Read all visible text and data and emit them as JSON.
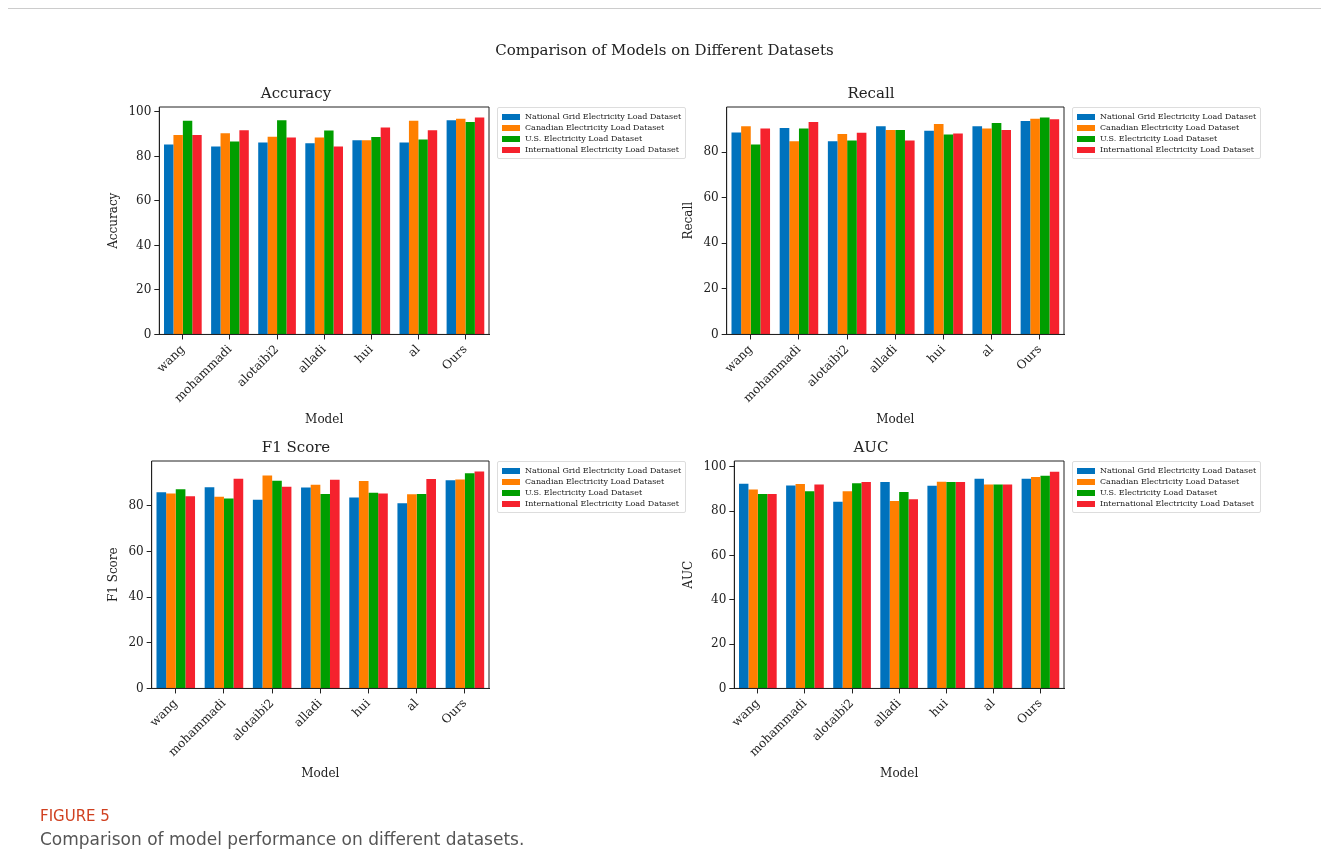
{
  "chart_data": [
    {
      "type": "bar",
      "title": "Accuracy",
      "xlabel": "Model",
      "ylabel": "Accuracy",
      "annotations": [
        "Comparison of Models on Different Datasets"
      ],
      "legend": "right",
      "ylim": [
        0,
        102.2
      ],
      "yticks": [
        0,
        20,
        40,
        60,
        80,
        100
      ],
      "categories": [
        "wang",
        "mohammadi",
        "alotaibi2",
        "alladi",
        "hui",
        "al",
        "Ours"
      ],
      "series": [
        {
          "name": "National Grid Electricity Load Dataset",
          "color": "#0072bd",
          "values": [
            85.4,
            84.4,
            86.3,
            85.9,
            87.3,
            86.3,
            96.2
          ]
        },
        {
          "name": "Canadian Electricity Load Dataset",
          "color": "#ff7f00",
          "values": [
            89.6,
            90.4,
            88.8,
            88.5,
            87.3,
            96.0,
            96.9
          ]
        },
        {
          "name": "U.S. Electricity Load Dataset",
          "color": "#009e00",
          "values": [
            96.0,
            86.7,
            96.3,
            91.6,
            88.7,
            87.6,
            95.5
          ]
        },
        {
          "name": "International Electricity Load Dataset",
          "color": "#f5222d",
          "values": [
            89.6,
            91.8,
            88.5,
            84.4,
            93.0,
            91.8,
            97.5
          ]
        }
      ]
    },
    {
      "type": "bar",
      "title": "Recall",
      "xlabel": "Model",
      "ylabel": "Recall",
      "legend": "right",
      "ylim": [
        0,
        99.8
      ],
      "yticks": [
        0,
        20,
        40,
        60,
        80
      ],
      "categories": [
        "wang",
        "mohammadi",
        "alotaibi2",
        "alladi",
        "hui",
        "al",
        "Ours"
      ],
      "series": [
        {
          "name": "National Grid Electricity Load Dataset",
          "color": "#0072bd",
          "values": [
            88.6,
            90.6,
            84.8,
            91.3,
            89.4,
            91.3,
            93.7
          ]
        },
        {
          "name": "Canadian Electricity Load Dataset",
          "color": "#ff7f00",
          "values": [
            91.3,
            84.8,
            87.9,
            89.7,
            92.3,
            90.4,
            94.6
          ]
        },
        {
          "name": "U.S. Electricity Load Dataset",
          "color": "#009e00",
          "values": [
            83.3,
            90.4,
            85.1,
            89.7,
            87.7,
            92.8,
            95.2
          ]
        },
        {
          "name": "International Electricity Load Dataset",
          "color": "#f5222d",
          "values": [
            90.4,
            93.2,
            88.5,
            85.1,
            88.2,
            89.7,
            94.4
          ]
        }
      ]
    },
    {
      "type": "bar",
      "title": "F1 Score",
      "xlabel": "Model",
      "ylabel": "F1 Score",
      "legend": "right",
      "ylim": [
        0,
        99.7
      ],
      "yticks": [
        0,
        20,
        40,
        60,
        80
      ],
      "categories": [
        "wang",
        "mohammadi",
        "alotaibi2",
        "alladi",
        "hui",
        "al",
        "Ours"
      ],
      "series": [
        {
          "name": "National Grid Electricity Load Dataset",
          "color": "#0072bd",
          "values": [
            86.0,
            88.2,
            82.7,
            88.1,
            83.7,
            81.2,
            91.3
          ]
        },
        {
          "name": "Canadian Electricity Load Dataset",
          "color": "#ff7f00",
          "values": [
            85.5,
            84.0,
            93.3,
            89.3,
            90.9,
            85.1,
            91.6
          ]
        },
        {
          "name": "U.S. Electricity Load Dataset",
          "color": "#009e00",
          "values": [
            87.3,
            83.3,
            91.0,
            85.2,
            85.8,
            85.2,
            94.3
          ]
        },
        {
          "name": "International Electricity Load Dataset",
          "color": "#f5222d",
          "values": [
            84.3,
            91.9,
            88.4,
            91.5,
            85.5,
            91.8,
            95.1
          ]
        }
      ]
    },
    {
      "type": "bar",
      "title": "AUC",
      "xlabel": "Model",
      "ylabel": "AUC",
      "annotations": [
        "FIGURE 5",
        "Comparison of model performance on different datasets."
      ],
      "legend": "right",
      "ylim": [
        0,
        102.6
      ],
      "yticks": [
        0,
        20,
        40,
        60,
        80,
        100
      ],
      "categories": [
        "wang",
        "mohammadi",
        "alotaibi2",
        "alladi",
        "hui",
        "al",
        "Ours"
      ],
      "series": [
        {
          "name": "National Grid Electricity Load Dataset",
          "color": "#0072bd",
          "values": [
            92.3,
            91.6,
            84.2,
            93.1,
            91.4,
            94.6,
            94.6
          ]
        },
        {
          "name": "Canadian Electricity Load Dataset",
          "color": "#ff7f00",
          "values": [
            89.7,
            92.2,
            88.9,
            84.6,
            93.2,
            92.0,
            95.4
          ]
        },
        {
          "name": "U.S. Electricity Load Dataset",
          "color": "#009e00",
          "values": [
            87.7,
            88.9,
            92.6,
            88.6,
            93.1,
            92.0,
            96.0
          ]
        },
        {
          "name": "International Electricity Load Dataset",
          "color": "#f5222d",
          "values": [
            87.7,
            92.0,
            93.1,
            85.3,
            93.1,
            92.0,
            97.8
          ]
        }
      ]
    }
  ]
}
